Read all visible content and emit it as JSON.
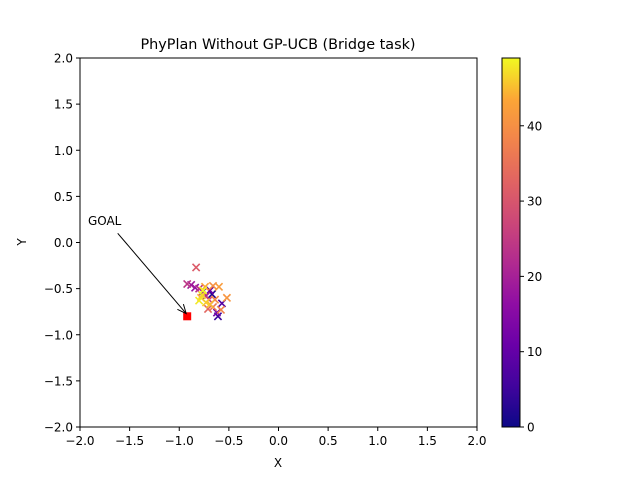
{
  "chart_data": {
    "type": "scatter",
    "title": "PhyPlan Without GP-UCB (Bridge task)",
    "xlabel": "X",
    "ylabel": "Y",
    "xlim": [
      -2.0,
      2.0
    ],
    "ylim": [
      -2.0,
      2.0
    ],
    "x_ticks": [
      "−2.0",
      "−1.5",
      "−1.0",
      "−0.5",
      "0.0",
      "0.5",
      "1.0",
      "1.5",
      "2.0"
    ],
    "y_ticks": [
      "−2.0",
      "−1.5",
      "−1.0",
      "−0.5",
      "0.0",
      "0.5",
      "1.0",
      "1.5",
      "2.0"
    ],
    "x_tick_values": [
      -2.0,
      -1.5,
      -1.0,
      -0.5,
      0.0,
      0.5,
      1.0,
      1.5,
      2.0
    ],
    "y_tick_values": [
      -2.0,
      -1.5,
      -1.0,
      -0.5,
      0.0,
      0.5,
      1.0,
      1.5,
      2.0
    ],
    "grid": false,
    "colormap": "plasma",
    "colorbar": {
      "range": [
        0,
        49
      ],
      "tick_values": [
        0,
        10,
        20,
        30,
        40
      ],
      "tick_labels": [
        "0",
        "10",
        "20",
        "30",
        "40"
      ]
    },
    "points": [
      {
        "x": -0.67,
        "y": -0.56,
        "c": 2
      },
      {
        "x": -0.61,
        "y": -0.8,
        "c": 5
      },
      {
        "x": -0.57,
        "y": -0.66,
        "c": 8
      },
      {
        "x": -0.69,
        "y": -0.52,
        "c": 11
      },
      {
        "x": -0.62,
        "y": -0.76,
        "c": 13
      },
      {
        "x": -0.76,
        "y": -0.53,
        "c": 15
      },
      {
        "x": -0.84,
        "y": -0.49,
        "c": 17
      },
      {
        "x": -0.88,
        "y": -0.46,
        "c": 19
      },
      {
        "x": -0.73,
        "y": -0.58,
        "c": 21
      },
      {
        "x": -0.8,
        "y": -0.5,
        "c": 23
      },
      {
        "x": -0.92,
        "y": -0.45,
        "c": 24
      },
      {
        "x": -0.7,
        "y": -0.62,
        "c": 27
      },
      {
        "x": -0.83,
        "y": -0.27,
        "c": 31
      },
      {
        "x": -0.71,
        "y": -0.72,
        "c": 33
      },
      {
        "x": -0.66,
        "y": -0.7,
        "c": 36
      },
      {
        "x": -0.58,
        "y": -0.73,
        "c": 38
      },
      {
        "x": -0.64,
        "y": -0.62,
        "c": 39
      },
      {
        "x": -0.66,
        "y": -0.47,
        "c": 40
      },
      {
        "x": -0.52,
        "y": -0.6,
        "c": 41
      },
      {
        "x": -0.6,
        "y": -0.48,
        "c": 42
      },
      {
        "x": -0.74,
        "y": -0.48,
        "c": 43
      },
      {
        "x": -0.78,
        "y": -0.6,
        "c": 44
      },
      {
        "x": -0.69,
        "y": -0.67,
        "c": 45
      },
      {
        "x": -0.73,
        "y": -0.65,
        "c": 46
      },
      {
        "x": -0.77,
        "y": -0.57,
        "c": 47
      },
      {
        "x": -0.8,
        "y": -0.63,
        "c": 48
      },
      {
        "x": -0.76,
        "y": -0.52,
        "c": 49
      }
    ],
    "goal": {
      "x": -0.92,
      "y": -0.8,
      "color": "#ff0000"
    },
    "annotation": {
      "text": "GOAL",
      "text_x": -1.92,
      "text_y": 0.19,
      "arrow_from_x": -1.62,
      "arrow_from_y": 0.1,
      "arrow_to_x": -0.93,
      "arrow_to_y": -0.77
    }
  }
}
